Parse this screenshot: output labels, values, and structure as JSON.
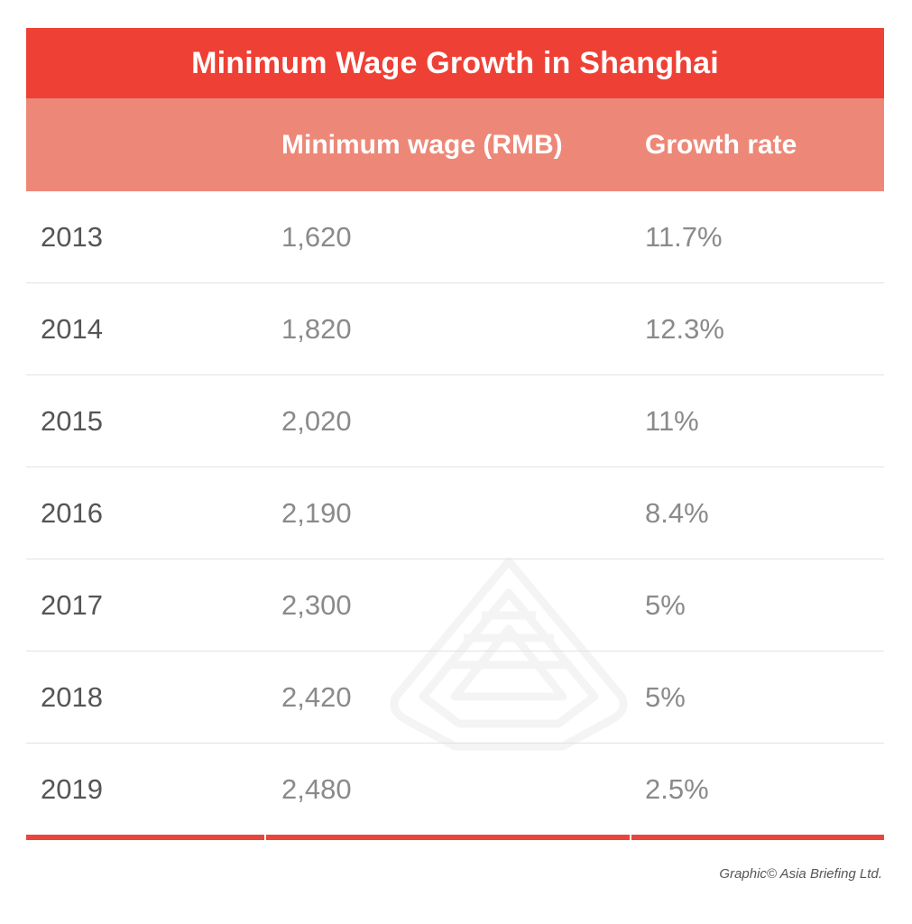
{
  "chart_data": {
    "type": "table",
    "title": "Minimum Wage Growth in Shanghai",
    "columns": [
      "",
      "Minimum wage (RMB)",
      "Growth rate"
    ],
    "rows": [
      {
        "year": "2013",
        "wage": "1,620",
        "rate": "11.7%"
      },
      {
        "year": "2014",
        "wage": "1,820",
        "rate": "12.3%"
      },
      {
        "year": "2015",
        "wage": "2,020",
        "rate": "11%"
      },
      {
        "year": "2016",
        "wage": "2,190",
        "rate": "8.4%"
      },
      {
        "year": "2017",
        "wage": "2,300",
        "rate": "5%"
      },
      {
        "year": "2018",
        "wage": "2,420",
        "rate": "5%"
      },
      {
        "year": "2019",
        "wage": "2,480",
        "rate": "2.5%"
      }
    ]
  },
  "credit": "Graphic© Asia Briefing Ltd.",
  "colors": {
    "title_bg": "#ee4035",
    "header_bg": "#ed8878",
    "rule": "#e8463c"
  }
}
